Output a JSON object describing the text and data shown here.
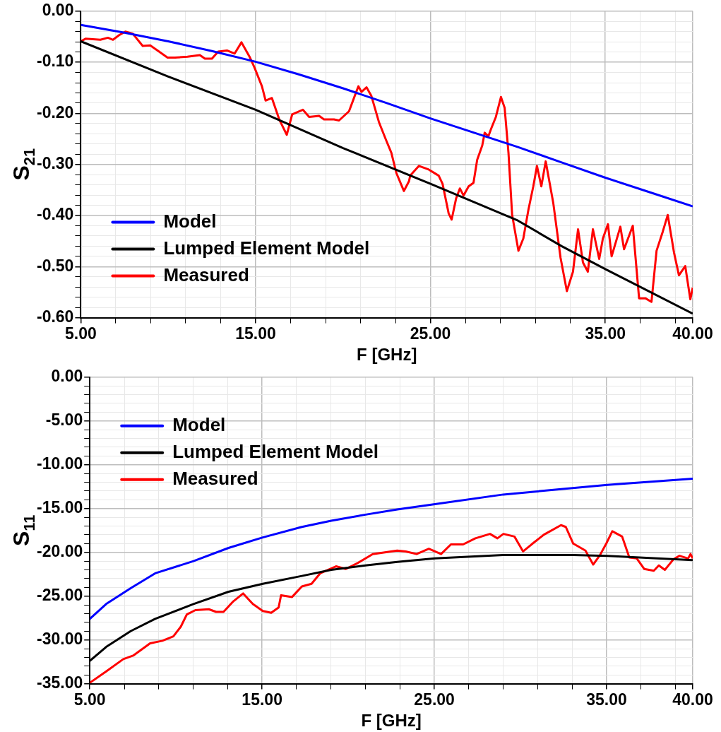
{
  "chart_data": [
    {
      "type": "line",
      "xlabel": "F [GHz]",
      "ylabel": "S$_{21}$",
      "legend": "bottom left",
      "grid": true,
      "xlim": [
        5,
        40
      ],
      "ylim": [
        -0.6,
        0
      ],
      "xticks": [
        {
          "value": 5,
          "label": "5.00"
        },
        {
          "value": 7,
          "label": null
        },
        {
          "value": 9,
          "label": null
        },
        {
          "value": 11,
          "label": null
        },
        {
          "value": 13,
          "label": null
        },
        {
          "value": 15,
          "label": "15.00"
        },
        {
          "value": 17,
          "label": null
        },
        {
          "value": 19,
          "label": null
        },
        {
          "value": 21,
          "label": null
        },
        {
          "value": 23,
          "label": null
        },
        {
          "value": 25,
          "label": "25.00"
        },
        {
          "value": 27,
          "label": null
        },
        {
          "value": 29,
          "label": null
        },
        {
          "value": 31,
          "label": null
        },
        {
          "value": 33,
          "label": null
        },
        {
          "value": 35,
          "label": "35.00"
        },
        {
          "value": 37,
          "label": null
        },
        {
          "value": 39,
          "label": null
        },
        {
          "value": 40,
          "label": "40.00"
        }
      ],
      "yticks": [
        {
          "value": -0.6,
          "label": "-0.60"
        },
        {
          "value": -0.58,
          "label": null
        },
        {
          "value": -0.56,
          "label": null
        },
        {
          "value": -0.54,
          "label": null
        },
        {
          "value": -0.52,
          "label": null
        },
        {
          "value": -0.5,
          "label": "-0.50"
        },
        {
          "value": -0.48,
          "label": null
        },
        {
          "value": -0.46,
          "label": null
        },
        {
          "value": -0.44,
          "label": null
        },
        {
          "value": -0.42,
          "label": null
        },
        {
          "value": -0.4,
          "label": "-0.40"
        },
        {
          "value": -0.38,
          "label": null
        },
        {
          "value": -0.36,
          "label": null
        },
        {
          "value": -0.34,
          "label": null
        },
        {
          "value": -0.32,
          "label": null
        },
        {
          "value": -0.3,
          "label": "-0.30"
        },
        {
          "value": -0.28,
          "label": null
        },
        {
          "value": -0.26,
          "label": null
        },
        {
          "value": -0.24,
          "label": null
        },
        {
          "value": -0.22,
          "label": null
        },
        {
          "value": -0.2,
          "label": "-0.20"
        },
        {
          "value": -0.18,
          "label": null
        },
        {
          "value": -0.16,
          "label": null
        },
        {
          "value": -0.14,
          "label": null
        },
        {
          "value": -0.12,
          "label": null
        },
        {
          "value": -0.1,
          "label": "-0.10"
        },
        {
          "value": -0.08,
          "label": null
        },
        {
          "value": -0.06,
          "label": null
        },
        {
          "value": -0.04,
          "label": null
        },
        {
          "value": -0.02,
          "label": null
        },
        {
          "value": 0,
          "label": "0.00"
        }
      ],
      "series": [
        {
          "name": "Model",
          "color": "#0000ff",
          "x": [
            5,
            7.5,
            10,
            12.5,
            15,
            17.5,
            20,
            22.5,
            25,
            27.5,
            30,
            32.5,
            35,
            37.5,
            40
          ],
          "values": [
            -0.027,
            -0.042,
            -0.059,
            -0.078,
            -0.099,
            -0.124,
            -0.151,
            -0.18,
            -0.21,
            -0.238,
            -0.266,
            -0.296,
            -0.326,
            -0.354,
            -0.382
          ]
        },
        {
          "name": "Lumped Element Model",
          "color": "#000000",
          "x": [
            5,
            10,
            15,
            20,
            25,
            30,
            32.5,
            35,
            40
          ],
          "values": [
            -0.059,
            -0.128,
            -0.193,
            -0.268,
            -0.338,
            -0.41,
            -0.46,
            -0.505,
            -0.592
          ]
        },
        {
          "name": "Measured",
          "color": "#ff0000",
          "x": [
            5,
            5.27,
            6.12,
            6.55,
            6.84,
            7.19,
            7.55,
            7.97,
            8.54,
            8.97,
            9.39,
            9.96,
            10.39,
            11.1,
            11.81,
            12.1,
            12.5,
            12.86,
            13.36,
            13.8,
            14.19,
            14.65,
            14.93,
            15.36,
            15.57,
            15.93,
            16.35,
            16.78,
            17.09,
            17.7,
            18.06,
            18.63,
            18.91,
            19.48,
            19.77,
            20.34,
            20.7,
            20.88,
            21.05,
            21.34,
            21.62,
            22.05,
            22.48,
            22.76,
            23.05,
            23.48,
            23.77,
            23.84,
            24.34,
            24.9,
            25.47,
            25.69,
            26.04,
            26.21,
            26.47,
            26.68,
            26.89,
            27.18,
            27.46,
            27.67,
            27.96,
            28.1,
            28.31,
            28.46,
            28.74,
            29.03,
            29.24,
            29.46,
            29.67,
            30.03,
            30.31,
            30.6,
            30.88,
            31.09,
            31.34,
            31.59,
            32.02,
            32.44,
            32.8,
            33.15,
            33.44,
            33.72,
            34,
            34.29,
            34.65,
            34.86,
            35.15,
            35.36,
            35.86,
            36.07,
            36.57,
            36.93,
            37.29,
            37.64,
            37.93,
            38.29,
            38.57,
            38.93,
            39.21,
            39.57,
            39.86,
            40
          ],
          "values": [
            -0.059,
            -0.054,
            -0.056,
            -0.052,
            -0.056,
            -0.047,
            -0.04,
            -0.044,
            -0.068,
            -0.067,
            -0.077,
            -0.091,
            -0.091,
            -0.089,
            -0.086,
            -0.093,
            -0.093,
            -0.079,
            -0.077,
            -0.083,
            -0.061,
            -0.089,
            -0.11,
            -0.147,
            -0.175,
            -0.17,
            -0.212,
            -0.242,
            -0.202,
            -0.193,
            -0.207,
            -0.205,
            -0.212,
            -0.212,
            -0.214,
            -0.196,
            -0.163,
            -0.147,
            -0.158,
            -0.149,
            -0.166,
            -0.217,
            -0.254,
            -0.277,
            -0.317,
            -0.352,
            -0.333,
            -0.322,
            -0.303,
            -0.31,
            -0.322,
            -0.338,
            -0.396,
            -0.408,
            -0.366,
            -0.347,
            -0.361,
            -0.343,
            -0.336,
            -0.291,
            -0.263,
            -0.238,
            -0.245,
            -0.231,
            -0.207,
            -0.168,
            -0.189,
            -0.277,
            -0.399,
            -0.469,
            -0.445,
            -0.389,
            -0.343,
            -0.303,
            -0.343,
            -0.294,
            -0.375,
            -0.483,
            -0.548,
            -0.51,
            -0.427,
            -0.492,
            -0.51,
            -0.427,
            -0.485,
            -0.445,
            -0.417,
            -0.48,
            -0.422,
            -0.466,
            -0.42,
            -0.562,
            -0.562,
            -0.569,
            -0.469,
            -0.431,
            -0.399,
            -0.473,
            -0.517,
            -0.499,
            -0.564,
            -0.541
          ]
        }
      ]
    },
    {
      "type": "line",
      "xlabel": "F [GHz]",
      "ylabel": "S$_{11}$",
      "legend": "top left",
      "grid": true,
      "xlim": [
        5,
        40
      ],
      "ylim": [
        -35,
        0
      ],
      "xticks": [
        {
          "value": 5,
          "label": "5.00"
        },
        {
          "value": 7,
          "label": null
        },
        {
          "value": 9,
          "label": null
        },
        {
          "value": 11,
          "label": null
        },
        {
          "value": 13,
          "label": null
        },
        {
          "value": 15,
          "label": "15.00"
        },
        {
          "value": 17,
          "label": null
        },
        {
          "value": 19,
          "label": null
        },
        {
          "value": 21,
          "label": null
        },
        {
          "value": 23,
          "label": null
        },
        {
          "value": 25,
          "label": "25.00"
        },
        {
          "value": 27,
          "label": null
        },
        {
          "value": 29,
          "label": null
        },
        {
          "value": 31,
          "label": null
        },
        {
          "value": 33,
          "label": null
        },
        {
          "value": 35,
          "label": "35.00"
        },
        {
          "value": 37,
          "label": null
        },
        {
          "value": 39,
          "label": null
        },
        {
          "value": 40,
          "label": "40.00"
        }
      ],
      "yticks": [
        {
          "value": -35,
          "label": "-35.00"
        },
        {
          "value": -34,
          "label": null
        },
        {
          "value": -33,
          "label": null
        },
        {
          "value": -32,
          "label": null
        },
        {
          "value": -31,
          "label": null
        },
        {
          "value": -30,
          "label": "-30.00"
        },
        {
          "value": -29,
          "label": null
        },
        {
          "value": -28,
          "label": null
        },
        {
          "value": -27,
          "label": null
        },
        {
          "value": -26,
          "label": null
        },
        {
          "value": -25,
          "label": "-25.00"
        },
        {
          "value": -24,
          "label": null
        },
        {
          "value": -23,
          "label": null
        },
        {
          "value": -22,
          "label": null
        },
        {
          "value": -21,
          "label": null
        },
        {
          "value": -20,
          "label": "-20.00"
        },
        {
          "value": -19,
          "label": null
        },
        {
          "value": -18,
          "label": null
        },
        {
          "value": -17,
          "label": null
        },
        {
          "value": -16,
          "label": null
        },
        {
          "value": -15,
          "label": "-15.00"
        },
        {
          "value": -14,
          "label": null
        },
        {
          "value": -13,
          "label": null
        },
        {
          "value": -12,
          "label": null
        },
        {
          "value": -11,
          "label": null
        },
        {
          "value": -10,
          "label": "-10.00"
        },
        {
          "value": -9,
          "label": null
        },
        {
          "value": -8,
          "label": null
        },
        {
          "value": -7,
          "label": null
        },
        {
          "value": -6,
          "label": null
        },
        {
          "value": -5,
          "label": "-5.00"
        },
        {
          "value": -4,
          "label": null
        },
        {
          "value": -3,
          "label": null
        },
        {
          "value": -2,
          "label": null
        },
        {
          "value": -1,
          "label": null
        },
        {
          "value": 0,
          "label": "0.00"
        }
      ],
      "series": [
        {
          "name": "Model",
          "color": "#0000ff",
          "x": [
            5,
            5.95,
            7.37,
            8.79,
            11.02,
            13.05,
            15.04,
            17.31,
            19.01,
            21,
            22.85,
            25.04,
            29,
            35.04,
            40
          ],
          "values": [
            -27.6,
            -25.9,
            -24.1,
            -22.4,
            -21,
            -19.5,
            -18.3,
            -17.1,
            -16.4,
            -15.7,
            -15.1,
            -14.5,
            -13.4,
            -12.3,
            -11.6
          ]
        },
        {
          "name": "Lumped Element Model",
          "color": "#000000",
          "x": [
            5,
            5.95,
            7.37,
            8.79,
            11.02,
            13.05,
            15.04,
            17.31,
            19.01,
            21,
            22.85,
            25.04,
            29,
            33.04,
            35.04,
            40
          ],
          "values": [
            -32.4,
            -30.8,
            -29,
            -27.6,
            -25.9,
            -24.5,
            -23.6,
            -22.7,
            -22,
            -21.5,
            -21.1,
            -20.7,
            -20.3,
            -20.3,
            -20.4,
            -20.9
          ]
        },
        {
          "name": "Measured",
          "color": "#ff0000",
          "x": [
            5,
            5.95,
            6.94,
            7.51,
            8.5,
            9.21,
            9.85,
            10.28,
            10.63,
            11.13,
            11.91,
            12.33,
            12.76,
            13.33,
            13.9,
            14.46,
            15.04,
            15.53,
            15.96,
            16.1,
            16.74,
            17.31,
            17.87,
            18.37,
            19.29,
            19.86,
            20.57,
            21.42,
            22.84,
            23.34,
            23.97,
            24.68,
            25.39,
            25.96,
            26.67,
            27.38,
            28.23,
            28.66,
            29.01,
            29.65,
            30.15,
            30.64,
            31.35,
            32.35,
            32.63,
            33.06,
            33.77,
            34.22,
            34.62,
            34.98,
            35.33,
            35.9,
            36.32,
            36.75,
            37.18,
            37.74,
            38.03,
            38.38,
            38.88,
            39.23,
            39.73,
            39.87,
            40
          ],
          "values": [
            -34.9,
            -33.6,
            -32.2,
            -31.8,
            -30.4,
            -30.1,
            -29.6,
            -28.5,
            -27.1,
            -26.6,
            -26.5,
            -26.8,
            -26.8,
            -25.6,
            -24.7,
            -25.9,
            -26.7,
            -26.9,
            -26.3,
            -24.9,
            -25.1,
            -23.9,
            -23.6,
            -22.4,
            -21.6,
            -21.9,
            -21.2,
            -20.2,
            -19.8,
            -19.9,
            -20.2,
            -19.6,
            -20.2,
            -19.1,
            -19.1,
            -18.4,
            -17.9,
            -18.4,
            -17.9,
            -18.2,
            -19.9,
            -19.1,
            -18,
            -16.9,
            -17.1,
            -19,
            -19.8,
            -21.4,
            -20.3,
            -19,
            -17.6,
            -18.2,
            -20.6,
            -20.7,
            -21.9,
            -22.1,
            -21.5,
            -22,
            -20.8,
            -20.4,
            -20.7,
            -20.2,
            -20.7
          ]
        }
      ]
    }
  ]
}
